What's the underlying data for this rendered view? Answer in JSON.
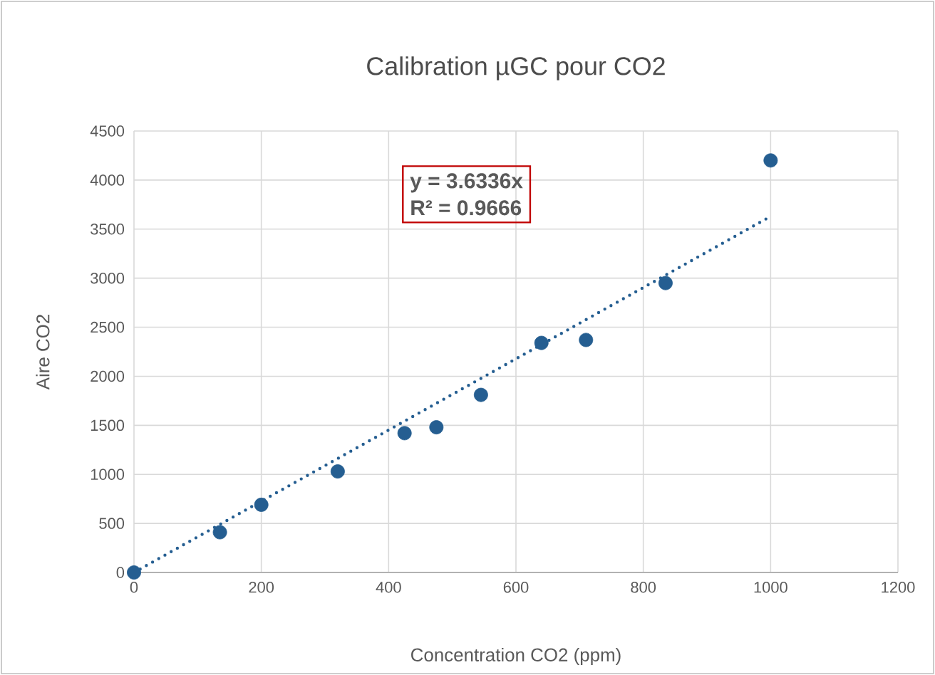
{
  "chart_data": {
    "type": "scatter",
    "title": "Calibration µGC pour CO2",
    "xlabel": "Concentration  CO2 (ppm)",
    "ylabel": "Aire CO2",
    "series": [
      {
        "color": "#255e91",
        "x": [
          0,
          135,
          200,
          320,
          425,
          475,
          545,
          640,
          710,
          835,
          1000
        ],
        "values": [
          0,
          410,
          690,
          1030,
          1420,
          1480,
          1810,
          2340,
          2370,
          2950,
          4200
        ]
      },
      {
        "type": "line",
        "color": "#255e91",
        "marker": "none",
        "line_style": "dotted",
        "x": [
          0,
          1000
        ],
        "values": [
          0,
          3630
        ]
      }
    ],
    "annotations": [
      "y = 3.6336x",
      "R² = 0.9666"
    ],
    "xlim": [
      0,
      1200
    ],
    "xticks": [
      0,
      200,
      400,
      600,
      800,
      1000,
      1200
    ],
    "ylim": [
      0,
      4500
    ],
    "yticks": [
      0,
      500,
      1000,
      1500,
      2000,
      2500,
      3000,
      3500,
      4000,
      4500
    ],
    "grid": true,
    "marker": "circle"
  }
}
